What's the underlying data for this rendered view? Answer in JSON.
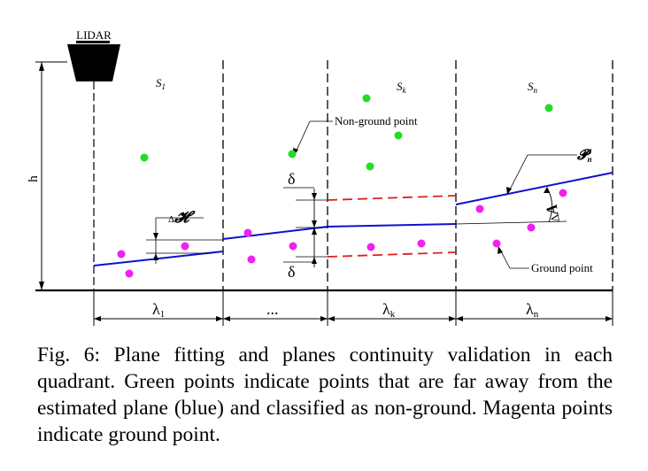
{
  "diagram": {
    "sensor_label": "LIDAR",
    "height_label": "h",
    "segment_labels": [
      "S",
      "S",
      "S"
    ],
    "segment_subscripts": [
      "1",
      "k",
      "n"
    ],
    "delta_top": "δ",
    "delta_bottom": "δ",
    "delta_h_prefix": "Δ",
    "delta_h_symbol": "𝓗",
    "plane_label": "𝓟",
    "plane_subscript": "n",
    "angle_label": "Δ",
    "angle_subscript": "A",
    "non_ground_callout": "Non-ground point",
    "ground_callout": "Ground point",
    "interval_labels": [
      "λ",
      "...",
      "λ",
      "λ"
    ],
    "interval_subscripts": [
      "1",
      "",
      "k",
      "n"
    ],
    "colors": {
      "plane": "#1010d0",
      "threshold": "#e02020",
      "non_ground": "#22dd22",
      "ground": "#ee22ee"
    }
  },
  "caption": "Fig. 6: Plane fitting and planes continuity validation in each quadrant. Green points indicate points that are far away from the estimated plane (blue) and classified as non-ground. Magenta points indicate ground point."
}
